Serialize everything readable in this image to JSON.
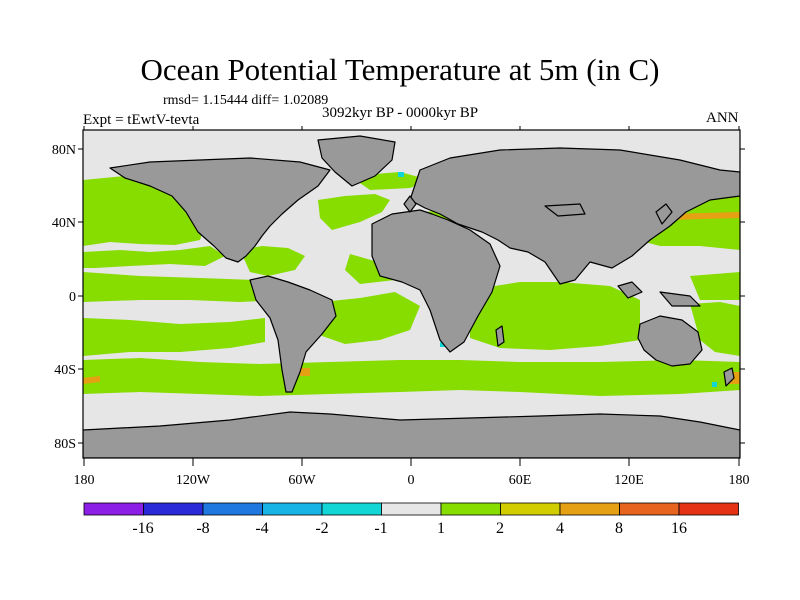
{
  "figure": {
    "title": "Ocean Potential Temperature at 5m (in C)",
    "stats": "rmsd= 1.15444 diff= 1.02089",
    "experiment": "Expt = tEwtV-tevta",
    "period": "3092kyr BP - 0000kyr BP",
    "season": "ANN"
  },
  "axes": {
    "lon_labels": [
      "180",
      "120W",
      "60W",
      "0",
      "60E",
      "120E",
      "180"
    ],
    "lat_labels": [
      "80N",
      "40N",
      "0",
      "40S",
      "80S"
    ]
  },
  "colorbar": {
    "labels": [
      "-16",
      "-8",
      "-4",
      "-2",
      "-1",
      "1",
      "2",
      "4",
      "8",
      "16"
    ],
    "colors": [
      "#8c1fe6",
      "#2a2ad8",
      "#1e78e0",
      "#19b4e6",
      "#12d6d6",
      "#e6e6e6",
      "#87dc00",
      "#d2cd00",
      "#e6a014",
      "#e6641e",
      "#e63214"
    ]
  },
  "palette": {
    "land": "#999999",
    "neutral": "#e6e6e6",
    "positive": "#87dc00",
    "warm": "#e6a014"
  }
}
